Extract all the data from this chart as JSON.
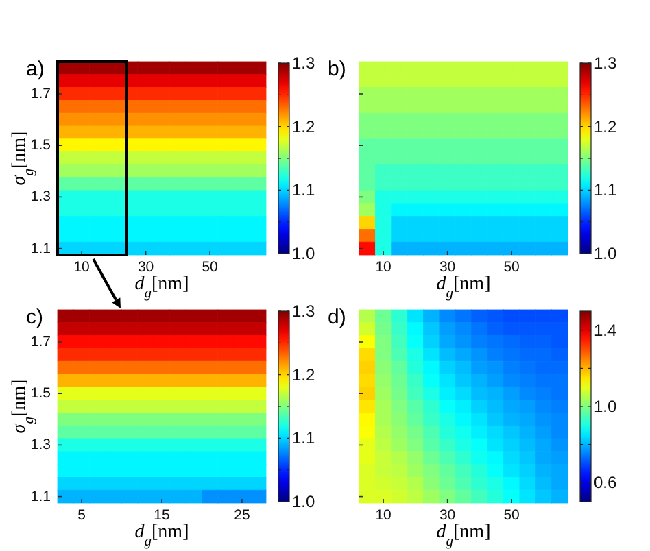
{
  "chart_data": [
    {
      "type": "heatmap",
      "title": "a)",
      "xlabel": "d$_{g}$[nm]",
      "ylabel": "σ$_{g}$[nm]",
      "categories": [
        null,
        "10",
        null,
        null,
        null,
        "30",
        null,
        null,
        null,
        "50",
        null,
        null,
        null
      ],
      "y_categories": [
        null,
        null,
        "1.7",
        null,
        null,
        null,
        "1.5",
        null,
        null,
        null,
        "1.3",
        null,
        null,
        null,
        "1.1"
      ],
      "cells": [
        [
          1.29,
          1.29,
          1.29,
          1.29,
          1.29,
          1.29,
          1.29,
          1.29,
          1.29,
          1.29,
          1.29,
          1.29,
          1.29
        ],
        [
          1.27,
          1.27,
          1.27,
          1.27,
          1.27,
          1.27,
          1.27,
          1.27,
          1.27,
          1.27,
          1.27,
          1.27,
          1.27
        ],
        [
          1.25,
          1.25,
          1.25,
          1.25,
          1.25,
          1.25,
          1.25,
          1.25,
          1.25,
          1.25,
          1.25,
          1.25,
          1.25
        ],
        [
          1.23,
          1.23,
          1.23,
          1.23,
          1.23,
          1.23,
          1.23,
          1.23,
          1.23,
          1.23,
          1.23,
          1.23,
          1.23
        ],
        [
          1.22,
          1.22,
          1.22,
          1.22,
          1.22,
          1.22,
          1.22,
          1.22,
          1.22,
          1.22,
          1.22,
          1.22,
          1.22
        ],
        [
          1.21,
          1.21,
          1.21,
          1.21,
          1.21,
          1.21,
          1.21,
          1.21,
          1.21,
          1.21,
          1.21,
          1.21,
          1.21
        ],
        [
          1.19,
          1.19,
          1.19,
          1.19,
          1.19,
          1.19,
          1.19,
          1.19,
          1.19,
          1.19,
          1.19,
          1.19,
          1.19
        ],
        [
          1.17,
          1.17,
          1.17,
          1.17,
          1.17,
          1.17,
          1.17,
          1.17,
          1.17,
          1.17,
          1.17,
          1.17,
          1.17
        ],
        [
          1.16,
          1.16,
          1.16,
          1.16,
          1.16,
          1.16,
          1.16,
          1.16,
          1.16,
          1.16,
          1.16,
          1.16,
          1.16
        ],
        [
          1.14,
          1.14,
          1.14,
          1.14,
          1.14,
          1.14,
          1.14,
          1.14,
          1.14,
          1.14,
          1.14,
          1.14,
          1.14
        ],
        [
          1.12,
          1.12,
          1.12,
          1.12,
          1.12,
          1.12,
          1.12,
          1.12,
          1.12,
          1.12,
          1.12,
          1.12,
          1.12
        ],
        [
          1.12,
          1.12,
          1.12,
          1.12,
          1.12,
          1.12,
          1.12,
          1.12,
          1.12,
          1.12,
          1.12,
          1.12,
          1.12
        ],
        [
          1.11,
          1.11,
          1.11,
          1.11,
          1.11,
          1.11,
          1.11,
          1.11,
          1.11,
          1.11,
          1.11,
          1.11,
          1.11
        ],
        [
          1.11,
          1.11,
          1.11,
          1.11,
          1.11,
          1.11,
          1.11,
          1.11,
          1.11,
          1.11,
          1.11,
          1.11,
          1.11
        ],
        [
          1.1,
          1.1,
          1.1,
          1.1,
          1.1,
          1.1,
          1.1,
          1.1,
          1.1,
          1.1,
          1.1,
          1.1,
          1.1
        ]
      ],
      "clim": [
        1,
        1.3
      ],
      "cticks": [
        {
          "value": 1,
          "label": "1.0"
        },
        {
          "value": 1.05,
          "label": null
        },
        1.1,
        {
          "value": 1.15,
          "label": null
        },
        1.2,
        {
          "value": 1.25,
          "label": null
        },
        1.3
      ]
    },
    {
      "type": "heatmap",
      "title": "b)",
      "xlabel": "d$_{g}$[nm]",
      "tick_labels": "x",
      "categories": [
        null,
        "10",
        null,
        null,
        null,
        "30",
        null,
        null,
        null,
        "50",
        null,
        null,
        null
      ],
      "y_categories": [
        null,
        null,
        "1.7",
        null,
        null,
        null,
        "1.5",
        null,
        null,
        null,
        "1.3",
        null,
        null,
        null,
        "1.1"
      ],
      "cells": [
        [
          1.17,
          1.17,
          1.17,
          1.17,
          1.17,
          1.17,
          1.17,
          1.17,
          1.17,
          1.17,
          1.17,
          1.17,
          1.17
        ],
        [
          1.17,
          1.17,
          1.17,
          1.17,
          1.17,
          1.17,
          1.17,
          1.17,
          1.17,
          1.17,
          1.17,
          1.17,
          1.17
        ],
        [
          1.16,
          1.16,
          1.16,
          1.16,
          1.16,
          1.16,
          1.16,
          1.16,
          1.16,
          1.16,
          1.16,
          1.16,
          1.16
        ],
        [
          1.16,
          1.16,
          1.16,
          1.16,
          1.16,
          1.16,
          1.16,
          1.16,
          1.16,
          1.16,
          1.16,
          1.16,
          1.16
        ],
        [
          1.15,
          1.15,
          1.15,
          1.15,
          1.15,
          1.15,
          1.15,
          1.15,
          1.15,
          1.15,
          1.15,
          1.15,
          1.15
        ],
        [
          1.15,
          1.15,
          1.15,
          1.15,
          1.15,
          1.15,
          1.15,
          1.15,
          1.15,
          1.15,
          1.15,
          1.15,
          1.15
        ],
        [
          1.14,
          1.14,
          1.14,
          1.14,
          1.14,
          1.14,
          1.14,
          1.14,
          1.14,
          1.14,
          1.14,
          1.14,
          1.14
        ],
        [
          1.14,
          1.14,
          1.14,
          1.14,
          1.14,
          1.14,
          1.14,
          1.14,
          1.14,
          1.14,
          1.14,
          1.14,
          1.14
        ],
        [
          1.14,
          1.13,
          1.13,
          1.13,
          1.13,
          1.13,
          1.13,
          1.13,
          1.13,
          1.13,
          1.13,
          1.13,
          1.13
        ],
        [
          1.14,
          1.13,
          1.13,
          1.13,
          1.13,
          1.13,
          1.13,
          1.13,
          1.13,
          1.13,
          1.13,
          1.13,
          1.13
        ],
        [
          1.15,
          1.12,
          1.12,
          1.12,
          1.12,
          1.12,
          1.12,
          1.12,
          1.12,
          1.12,
          1.12,
          1.12,
          1.12
        ],
        [
          1.16,
          1.12,
          1.11,
          1.11,
          1.11,
          1.11,
          1.11,
          1.11,
          1.11,
          1.11,
          1.11,
          1.11,
          1.11
        ],
        [
          1.2,
          1.12,
          1.1,
          1.1,
          1.1,
          1.1,
          1.1,
          1.1,
          1.1,
          1.1,
          1.1,
          1.1,
          1.1
        ],
        [
          1.23,
          1.12,
          1.1,
          1.1,
          1.1,
          1.1,
          1.1,
          1.1,
          1.1,
          1.1,
          1.1,
          1.1,
          1.1
        ],
        [
          1.26,
          1.12,
          1.09,
          1.09,
          1.09,
          1.09,
          1.09,
          1.09,
          1.09,
          1.09,
          1.09,
          1.09,
          1.09
        ]
      ],
      "clim": [
        1,
        1.3
      ],
      "cticks": [
        {
          "value": 1,
          "label": "1.0"
        },
        {
          "value": 1.05,
          "label": null
        },
        1.1,
        {
          "value": 1.15,
          "label": null
        },
        1.2,
        {
          "value": 1.25,
          "label": null
        },
        1.3
      ]
    },
    {
      "type": "heatmap",
      "title": "c)",
      "xlabel": "d$_{g}$[nm]",
      "ylabel": "σ$_{g}$[nm]",
      "categories": [
        null,
        "5",
        null,
        null,
        null,
        null,
        "15",
        null,
        null,
        null,
        null,
        "25",
        null
      ],
      "y_categories": [
        null,
        null,
        "1.7",
        null,
        null,
        null,
        "1.5",
        null,
        null,
        null,
        "1.3",
        null,
        null,
        null,
        "1.1"
      ],
      "cells": [
        [
          1.29,
          1.29,
          1.29,
          1.29,
          1.29,
          1.29,
          1.29,
          1.29,
          1.29,
          1.29,
          1.29,
          1.29,
          1.29
        ],
        [
          1.28,
          1.28,
          1.28,
          1.28,
          1.28,
          1.28,
          1.28,
          1.28,
          1.28,
          1.28,
          1.28,
          1.28,
          1.28
        ],
        [
          1.26,
          1.26,
          1.26,
          1.26,
          1.26,
          1.26,
          1.26,
          1.26,
          1.26,
          1.26,
          1.26,
          1.26,
          1.26
        ],
        [
          1.25,
          1.25,
          1.25,
          1.25,
          1.25,
          1.25,
          1.25,
          1.25,
          1.25,
          1.25,
          1.25,
          1.25,
          1.25
        ],
        [
          1.23,
          1.23,
          1.23,
          1.23,
          1.23,
          1.23,
          1.23,
          1.23,
          1.23,
          1.23,
          1.23,
          1.23,
          1.23
        ],
        [
          1.21,
          1.21,
          1.21,
          1.21,
          1.21,
          1.21,
          1.21,
          1.21,
          1.21,
          1.21,
          1.21,
          1.21,
          1.21
        ],
        [
          1.18,
          1.18,
          1.18,
          1.18,
          1.18,
          1.18,
          1.18,
          1.18,
          1.18,
          1.18,
          1.18,
          1.18,
          1.18
        ],
        [
          1.17,
          1.17,
          1.17,
          1.17,
          1.17,
          1.17,
          1.17,
          1.17,
          1.17,
          1.17,
          1.17,
          1.17,
          1.17
        ],
        [
          1.15,
          1.15,
          1.15,
          1.15,
          1.15,
          1.15,
          1.15,
          1.15,
          1.15,
          1.15,
          1.15,
          1.15,
          1.15
        ],
        [
          1.14,
          1.14,
          1.14,
          1.14,
          1.14,
          1.14,
          1.14,
          1.14,
          1.14,
          1.14,
          1.14,
          1.14,
          1.14
        ],
        [
          1.12,
          1.12,
          1.12,
          1.12,
          1.12,
          1.12,
          1.12,
          1.12,
          1.12,
          1.12,
          1.12,
          1.12,
          1.12
        ],
        [
          1.11,
          1.11,
          1.11,
          1.11,
          1.11,
          1.11,
          1.11,
          1.11,
          1.11,
          1.11,
          1.11,
          1.11,
          1.11
        ],
        [
          1.11,
          1.11,
          1.11,
          1.11,
          1.11,
          1.11,
          1.11,
          1.11,
          1.11,
          1.11,
          1.11,
          1.11,
          1.11
        ],
        [
          1.1,
          1.1,
          1.1,
          1.1,
          1.1,
          1.1,
          1.1,
          1.1,
          1.1,
          1.1,
          1.1,
          1.1,
          1.1
        ],
        [
          1.09,
          1.09,
          1.09,
          1.09,
          1.09,
          1.09,
          1.09,
          1.09,
          1.09,
          1.08,
          1.08,
          1.08,
          1.08
        ]
      ],
      "clim": [
        1,
        1.3
      ],
      "cticks": [
        {
          "value": 1,
          "label": "1.0"
        },
        {
          "value": 1.05,
          "label": null
        },
        1.1,
        {
          "value": 1.15,
          "label": null
        },
        1.2,
        {
          "value": 1.25,
          "label": null
        },
        1.3
      ]
    },
    {
      "type": "heatmap",
      "title": "d)",
      "xlabel": "d$_{g}$[nm]",
      "tick_labels": "x",
      "categories": [
        null,
        "10",
        null,
        null,
        null,
        "30",
        null,
        null,
        null,
        "50",
        null,
        null,
        null
      ],
      "y_categories": [
        null,
        null,
        "1.7",
        null,
        null,
        null,
        "1.5",
        null,
        null,
        null,
        "1.3",
        null,
        null,
        null,
        "1.1"
      ],
      "cells": [
        [
          1.05,
          0.98,
          0.92,
          0.85,
          0.8,
          0.76,
          0.74,
          0.72,
          0.71,
          0.7,
          0.7,
          0.7,
          0.7
        ],
        [
          1.08,
          0.99,
          0.93,
          0.87,
          0.82,
          0.78,
          0.76,
          0.74,
          0.72,
          0.71,
          0.71,
          0.71,
          0.71
        ],
        [
          1.12,
          1,
          0.94,
          0.88,
          0.83,
          0.79,
          0.77,
          0.75,
          0.74,
          0.73,
          0.72,
          0.72,
          0.71
        ],
        [
          1.16,
          1,
          0.95,
          0.9,
          0.85,
          0.81,
          0.79,
          0.77,
          0.75,
          0.74,
          0.73,
          0.73,
          0.72
        ],
        [
          1.17,
          1.01,
          0.97,
          0.91,
          0.87,
          0.83,
          0.81,
          0.78,
          0.77,
          0.75,
          0.74,
          0.73,
          0.73
        ],
        [
          1.16,
          1.02,
          0.98,
          0.93,
          0.88,
          0.85,
          0.82,
          0.8,
          0.78,
          0.76,
          0.75,
          0.74,
          0.74
        ],
        [
          1.17,
          1.03,
          0.99,
          0.94,
          0.9,
          0.86,
          0.84,
          0.81,
          0.8,
          0.78,
          0.76,
          0.75,
          0.74
        ],
        [
          1.15,
          1.04,
          1,
          0.96,
          0.92,
          0.88,
          0.86,
          0.83,
          0.81,
          0.79,
          0.78,
          0.76,
          0.75
        ],
        [
          1.13,
          1.04,
          1.01,
          0.97,
          0.93,
          0.9,
          0.87,
          0.85,
          0.82,
          0.8,
          0.79,
          0.77,
          0.76
        ],
        [
          1.12,
          1.05,
          1.02,
          0.99,
          0.95,
          0.91,
          0.89,
          0.86,
          0.84,
          0.82,
          0.8,
          0.78,
          0.76
        ],
        [
          1.1,
          1.06,
          1.03,
          1,
          0.96,
          0.93,
          0.9,
          0.88,
          0.85,
          0.83,
          0.81,
          0.79,
          0.77
        ],
        [
          1.1,
          1.07,
          1.05,
          1.02,
          0.98,
          0.95,
          0.92,
          0.89,
          0.87,
          0.84,
          0.82,
          0.79,
          0.78
        ],
        [
          1.09,
          1.07,
          1.06,
          1.03,
          1,
          0.97,
          0.94,
          0.91,
          0.88,
          0.85,
          0.83,
          0.8,
          0.79
        ],
        [
          1.09,
          1.08,
          1.07,
          1.05,
          1.01,
          0.98,
          0.95,
          0.92,
          0.9,
          0.87,
          0.84,
          0.81,
          0.79
        ],
        [
          1.09,
          1.09,
          1.08,
          1.06,
          1.03,
          1,
          0.97,
          0.94,
          0.91,
          0.88,
          0.85,
          0.82,
          0.8
        ]
      ],
      "clim": [
        0.5,
        1.5
      ],
      "cticks": [
        0.6,
        {
          "value": 0.8,
          "label": null
        },
        {
          "value": 1,
          "label": "1.0"
        },
        {
          "value": 1.2,
          "label": null
        },
        1.4
      ]
    }
  ]
}
